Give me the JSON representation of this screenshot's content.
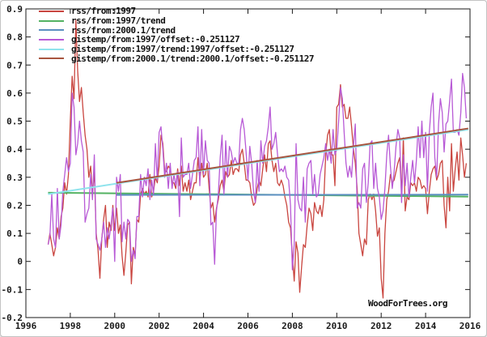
{
  "watermark": "WoodForTrees.org",
  "chart_data": {
    "type": "line",
    "title": "",
    "xlabel": "",
    "ylabel": "",
    "xlim": [
      1996,
      2016
    ],
    "ylim": [
      -0.2,
      0.9
    ],
    "x_ticks": [
      1996,
      1998,
      2000,
      2002,
      2004,
      2006,
      2008,
      2010,
      2012,
      2014,
      2016
    ],
    "y_ticks": [
      -0.2,
      -0.1,
      0,
      0.1,
      0.2,
      0.3,
      0.4,
      0.5,
      0.6,
      0.7,
      0.8,
      0.9
    ],
    "grid": false,
    "legend_position": "top-left",
    "x_step_years": 0.0833333,
    "series": [
      {
        "name": "rss-monthly",
        "label": "rss/from:1997",
        "color": "#c9453f",
        "kind": "monthly",
        "x_start": 1997.0,
        "values": [
          0.06,
          0.1,
          0.06,
          0.02,
          0.05,
          0.12,
          0.08,
          0.16,
          0.19,
          0.28,
          0.24,
          0.31,
          0.5,
          0.66,
          0.58,
          0.86,
          0.68,
          0.57,
          0.62,
          0.53,
          0.45,
          0.4,
          0.3,
          0.34,
          0.24,
          0.32,
          0.1,
          0.04,
          -0.06,
          0.08,
          0.15,
          0.2,
          0.05,
          0.14,
          0.11,
          0.2,
          0.11,
          0.19,
          0.1,
          0.13,
          0.02,
          -0.05,
          0.03,
          0.13,
          0.14,
          -0.08,
          0.05,
          0.02,
          0.15,
          0.14,
          0.24,
          0.26,
          0.24,
          0.25,
          0.23,
          0.31,
          0.23,
          0.25,
          0.3,
          0.28,
          0.34,
          0.45,
          0.42,
          0.32,
          0.32,
          0.34,
          0.33,
          0.28,
          0.28,
          0.26,
          0.33,
          0.27,
          0.34,
          0.25,
          0.28,
          0.25,
          0.29,
          0.22,
          0.25,
          0.28,
          0.28,
          0.37,
          0.29,
          0.35,
          0.3,
          0.31,
          0.35,
          0.26,
          0.19,
          0.21,
          0.14,
          0.19,
          0.22,
          0.27,
          0.29,
          0.25,
          0.32,
          0.3,
          0.31,
          0.36,
          0.31,
          0.33,
          0.33,
          0.32,
          0.38,
          0.4,
          0.35,
          0.29,
          0.29,
          0.28,
          0.23,
          0.2,
          0.21,
          0.26,
          0.29,
          0.27,
          0.33,
          0.38,
          0.32,
          0.42,
          0.43,
          0.36,
          0.32,
          0.35,
          0.28,
          0.27,
          0.29,
          0.27,
          0.23,
          0.2,
          0.14,
          0.12,
          0.02,
          -0.07,
          0.07,
          0.03,
          -0.11,
          -0.02,
          0.06,
          0.05,
          0.13,
          0.19,
          0.17,
          0.11,
          0.21,
          0.18,
          0.17,
          0.2,
          0.16,
          0.22,
          0.38,
          0.45,
          0.47,
          0.38,
          0.38,
          0.27,
          0.55,
          0.56,
          0.63,
          0.55,
          0.56,
          0.51,
          0.51,
          0.55,
          0.48,
          0.4,
          0.35,
          0.26,
          0.1,
          0.06,
          0.02,
          0.08,
          0.06,
          0.22,
          0.24,
          0.22,
          0.24,
          0.18,
          0.09,
          0.12,
          -0.06,
          -0.13,
          0.1,
          0.22,
          0.25,
          0.31,
          0.28,
          0.29,
          0.32,
          0.35,
          0.37,
          0.24,
          0.44,
          0.18,
          0.23,
          0.22,
          0.28,
          0.27,
          0.28,
          0.25,
          0.3,
          0.29,
          0.26,
          0.27,
          0.26,
          0.17,
          0.25,
          0.31,
          0.33,
          0.34,
          0.29,
          0.31,
          0.35,
          0.36,
          0.2,
          0.12,
          0.3,
          0.18,
          0.42,
          0.25,
          0.33,
          0.39,
          0.29,
          0.44,
          0.38,
          0.3,
          0.35
        ]
      },
      {
        "name": "rss-trend-1997",
        "label": "rss/from:1997/trend",
        "color": "#53b262",
        "kind": "trend",
        "x": [
          1997.0,
          2015.92
        ],
        "y": [
          0.245,
          0.231
        ]
      },
      {
        "name": "rss-trend-2000",
        "label": "rss/from:2000.1/trend",
        "color": "#5b8fc0",
        "kind": "trend",
        "x": [
          2000.08,
          2015.92
        ],
        "y": [
          0.237,
          0.238
        ]
      },
      {
        "name": "gistemp-monthly",
        "label": "gistemp/from:1997/offset:-0.251127",
        "color": "#b85ad6",
        "kind": "monthly",
        "x_start": 1997.0,
        "values": [
          0.06,
          0.09,
          0.24,
          0.08,
          0.05,
          0.26,
          0.08,
          0.13,
          0.25,
          0.31,
          0.37,
          0.32,
          0.35,
          0.6,
          0.55,
          0.38,
          0.42,
          0.5,
          0.43,
          0.39,
          0.14,
          0.17,
          0.19,
          0.31,
          0.22,
          0.38,
          0.08,
          0.06,
          0.04,
          0.08,
          0.14,
          0.05,
          0.12,
          0.08,
          0.13,
          0.19,
          0.0,
          0.3,
          0.25,
          0.31,
          0.07,
          0.14,
          0.08,
          0.15,
          0.14,
          0.0,
          0.04,
          0.01,
          0.16,
          0.16,
          0.31,
          0.23,
          0.3,
          0.27,
          0.33,
          0.22,
          0.29,
          0.24,
          0.42,
          0.29,
          0.46,
          0.48,
          0.4,
          0.3,
          0.35,
          0.26,
          0.35,
          0.26,
          0.31,
          0.27,
          0.32,
          0.16,
          0.44,
          0.3,
          0.31,
          0.31,
          0.35,
          0.26,
          0.31,
          0.36,
          0.37,
          0.48,
          0.27,
          0.47,
          0.31,
          0.43,
          0.36,
          0.35,
          0.13,
          0.14,
          -0.01,
          0.18,
          0.24,
          0.37,
          0.45,
          0.24,
          0.43,
          0.3,
          0.41,
          0.39,
          0.35,
          0.37,
          0.35,
          0.35,
          0.47,
          0.51,
          0.47,
          0.39,
          0.29,
          0.41,
          0.35,
          0.25,
          0.21,
          0.36,
          0.25,
          0.43,
          0.35,
          0.41,
          0.43,
          0.48,
          0.55,
          0.4,
          0.42,
          0.46,
          0.38,
          0.32,
          0.33,
          0.32,
          0.34,
          0.3,
          0.29,
          0.2,
          -0.03,
          0.06,
          0.42,
          0.22,
          0.19,
          0.18,
          0.3,
          0.14,
          0.33,
          0.35,
          0.36,
          0.24,
          0.31,
          0.23,
          0.24,
          0.31,
          0.34,
          0.37,
          0.42,
          0.36,
          0.4,
          0.35,
          0.47,
          0.38,
          0.4,
          0.5,
          0.62,
          0.58,
          0.46,
          0.35,
          0.3,
          0.34,
          0.3,
          0.41,
          0.49,
          0.19,
          0.21,
          0.19,
          0.33,
          0.35,
          0.21,
          0.28,
          0.42,
          0.43,
          0.26,
          0.35,
          0.26,
          0.23,
          0.15,
          0.18,
          0.26,
          0.38,
          0.45,
          0.34,
          0.26,
          0.32,
          0.41,
          0.47,
          0.44,
          0.21,
          0.38,
          0.27,
          0.35,
          0.23,
          0.3,
          0.36,
          0.28,
          0.36,
          0.48,
          0.37,
          0.5,
          0.37,
          0.46,
          0.25,
          0.46,
          0.55,
          0.6,
          0.37,
          0.3,
          0.49,
          0.58,
          0.53,
          0.39,
          0.49,
          0.5,
          0.57,
          0.65,
          0.46,
          0.46,
          0.47,
          0.45,
          0.53,
          0.67,
          0.62,
          0.51
        ]
      },
      {
        "name": "gistemp-trend-1997",
        "label": "gistemp/from:1997/trend:1997/offset:-0.251127",
        "color": "#8fe3ec",
        "kind": "trend",
        "x": [
          1997.0,
          2015.92
        ],
        "y": [
          0.24,
          0.47
        ]
      },
      {
        "name": "gistemp-trend-2000",
        "label": "gistemp/from:2000.1/trend:2000.1/offset:-0.251127",
        "color": "#a8553f",
        "kind": "trend",
        "x": [
          2000.08,
          2015.92
        ],
        "y": [
          0.28,
          0.474
        ]
      }
    ]
  }
}
